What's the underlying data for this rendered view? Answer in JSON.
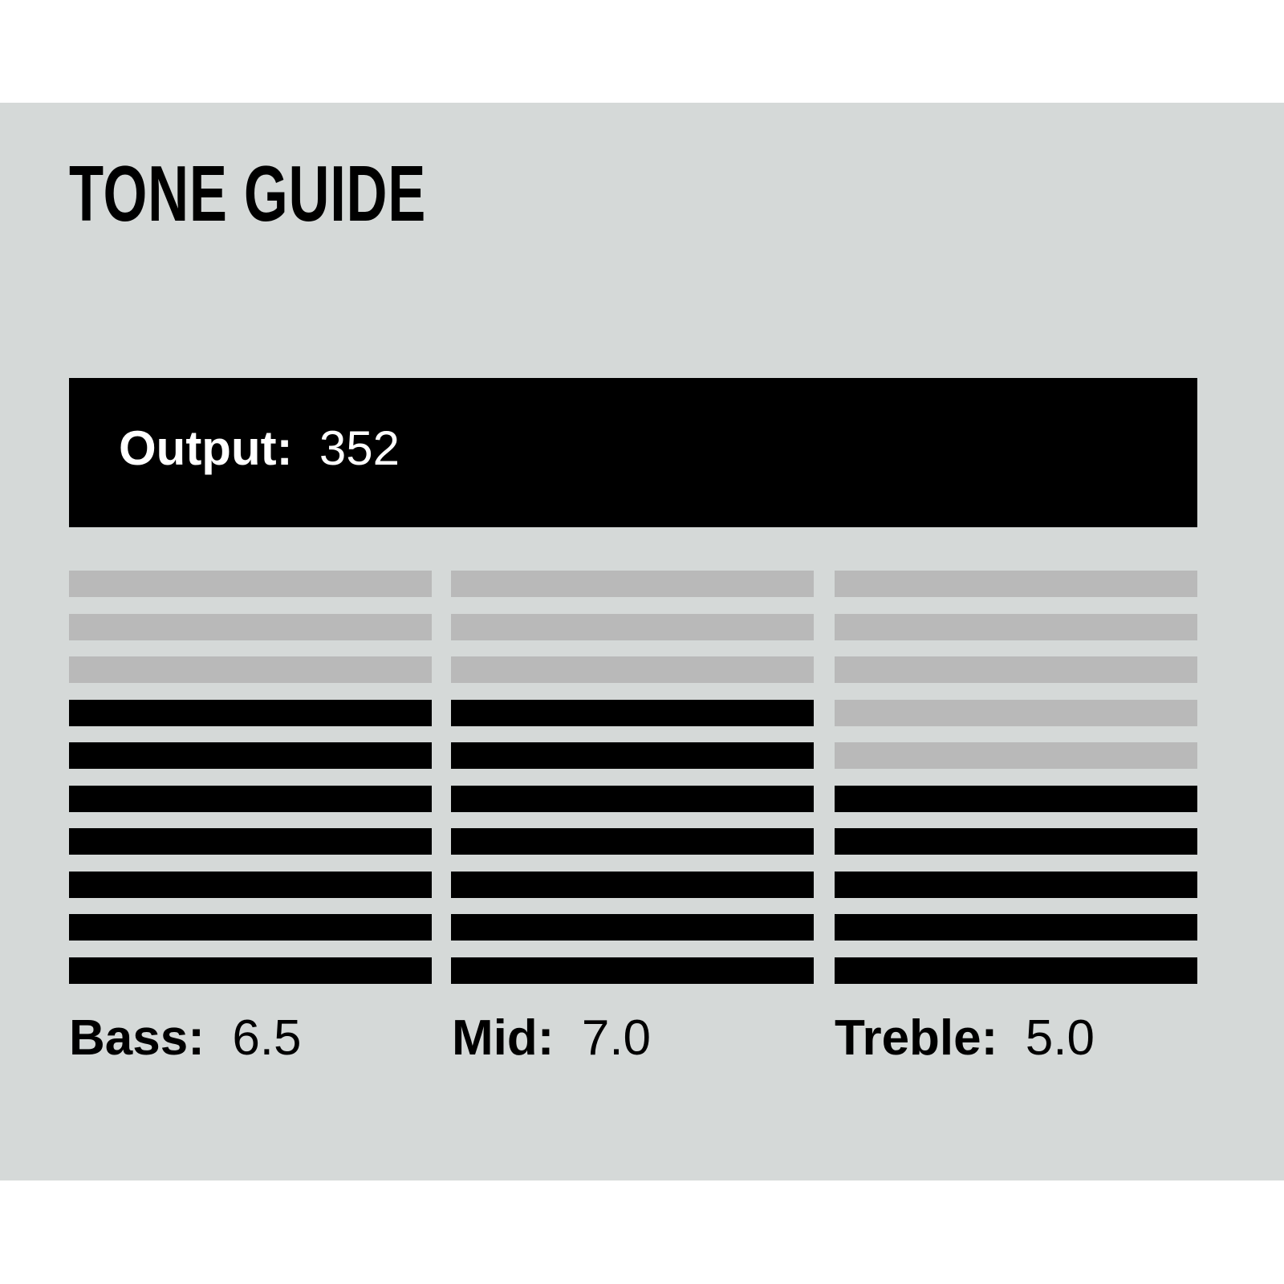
{
  "title": "TONE GUIDE",
  "output": {
    "label": "Output:",
    "value": "352"
  },
  "colors": {
    "background": "#d5d9d8",
    "active_segment": "#000000",
    "inactive_segment": "#b9b9b9"
  },
  "meters": [
    {
      "label": "Bass:",
      "value": "6.5",
      "segments": 10,
      "lit": 7
    },
    {
      "label": "Mid:",
      "value": "7.0",
      "segments": 10,
      "lit": 7
    },
    {
      "label": "Treble:",
      "value": "5.0",
      "segments": 10,
      "lit": 5
    }
  ]
}
